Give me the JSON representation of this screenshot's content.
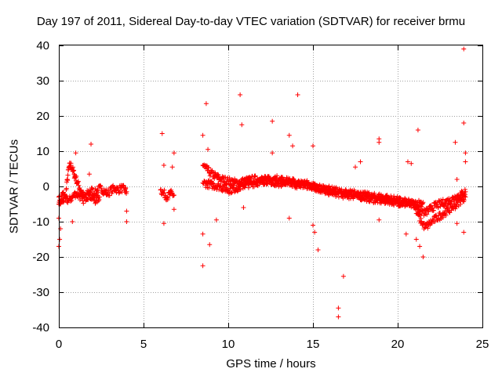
{
  "chart_data": {
    "type": "scatter",
    "title": "Day 197 of 2011, Sidereal Day-to-day VTEC variation (SDTVAR) for receiver brmu",
    "xlabel": "GPS time / hours",
    "ylabel": "SDTVAR / TECUs",
    "xlim": [
      0,
      25
    ],
    "ylim": [
      -40,
      40
    ],
    "xticks": [
      "0",
      "5",
      "10",
      "15",
      "20",
      "25"
    ],
    "yticks": [
      "-40",
      "-30",
      "-20",
      "-10",
      "0",
      "10",
      "20",
      "30",
      "40"
    ],
    "grid": true,
    "marker": "+",
    "marker_color": "#ff0000",
    "series": [
      {
        "name": "SDTVAR",
        "segments": [
          {
            "x": [
              0.0,
              0.1,
              0.2,
              0.4,
              0.5,
              0.6,
              0.7,
              0.8,
              0.9,
              1.0,
              1.1,
              1.3,
              1.5,
              1.7,
              1.9,
              2.1,
              2.3,
              2.5,
              2.7,
              2.9,
              3.1,
              3.3,
              3.5,
              3.7,
              3.9,
              4.0
            ],
            "y": [
              -3.0,
              -5.0,
              -2.0,
              -3.0,
              2.0,
              5.5,
              6.0,
              5.0,
              3.5,
              2.5,
              1.0,
              -1.0,
              -3.0,
              -2.0,
              -1.0,
              -2.0,
              -1.0,
              -0.5,
              -1.5,
              -2.0,
              -1.0,
              -0.5,
              -1.0,
              -0.5,
              -1.0,
              -1.5
            ]
          },
          {
            "x": [
              0.0,
              0.2,
              0.4,
              0.6,
              0.8,
              1.0,
              1.2,
              1.4,
              1.6,
              1.8,
              2.0,
              2.2,
              2.4
            ],
            "y": [
              -5.0,
              -4.0,
              -3.5,
              -4.0,
              -3.0,
              -2.0,
              -2.5,
              -4.0,
              -3.0,
              -2.5,
              -3.5,
              -4.0,
              -3.0
            ]
          },
          {
            "x": [
              6.0,
              6.2,
              6.4,
              6.6,
              6.8
            ],
            "y": [
              -1.0,
              -2.0,
              -3.0,
              -2.0,
              -2.5
            ]
          },
          {
            "x": [
              8.5,
              8.7,
              8.9,
              9.2,
              9.6,
              10.0,
              10.5,
              11.0,
              11.5,
              12.0,
              12.5,
              13.0,
              13.5,
              14.0,
              14.5,
              15.0,
              15.5,
              16.0,
              16.5,
              17.0,
              17.5,
              18.0,
              18.5,
              19.0,
              19.5,
              20.0,
              20.5,
              21.0
            ],
            "y": [
              6.0,
              5.0,
              4.0,
              3.0,
              2.0,
              1.5,
              1.0,
              1.5,
              2.0,
              2.0,
              1.5,
              1.0,
              1.0,
              0.5,
              1.0,
              0.0,
              -1.0,
              -1.5,
              -2.0,
              -2.5,
              -2.5,
              -3.0,
              -3.5,
              -4.0,
              -4.0,
              -4.5,
              -5.0,
              -5.5
            ]
          },
          {
            "x": [
              8.5,
              9.0,
              9.5,
              10.0,
              10.5,
              11.0,
              11.5,
              12.0,
              12.5,
              13.0,
              13.5,
              14.0,
              14.5,
              15.0,
              15.5,
              16.0,
              16.5,
              17.0,
              17.5,
              18.0,
              18.5,
              19.0,
              19.5,
              20.0,
              20.5,
              21.0,
              21.5
            ],
            "y": [
              1.0,
              0.5,
              0.0,
              -1.0,
              -0.5,
              0.5,
              1.0,
              1.5,
              2.0,
              2.0,
              1.5,
              1.0,
              0.5,
              0.0,
              -0.5,
              -1.0,
              -1.5,
              -2.0,
              -2.0,
              -2.5,
              -3.0,
              -3.0,
              -3.5,
              -4.0,
              -4.5,
              -5.0,
              -4.5
            ]
          },
          {
            "x": [
              21.0,
              21.2,
              21.4,
              21.6,
              21.8,
              22.0,
              22.3,
              22.6,
              22.9,
              23.2,
              23.5,
              23.8,
              24.0
            ],
            "y": [
              -6.0,
              -8.0,
              -10.0,
              -11.5,
              -11.0,
              -10.0,
              -9.0,
              -8.0,
              -7.0,
              -6.0,
              -5.0,
              -3.5,
              -3.0
            ]
          },
          {
            "x": [
              21.0,
              21.3,
              21.6,
              21.9,
              22.2,
              22.5,
              22.8,
              23.1,
              23.4,
              23.7,
              24.0
            ],
            "y": [
              -5.0,
              -6.5,
              -7.5,
              -6.5,
              -5.5,
              -5.0,
              -4.5,
              -4.0,
              -3.0,
              -2.5,
              -1.5
            ]
          }
        ],
        "outliers": [
          {
            "x": 0.0,
            "y": -17.0
          },
          {
            "x": 0.05,
            "y": -15.0
          },
          {
            "x": 0.1,
            "y": -12.0
          },
          {
            "x": 0.0,
            "y": -9.0
          },
          {
            "x": 1.0,
            "y": 9.5
          },
          {
            "x": 1.9,
            "y": 12.0
          },
          {
            "x": 1.8,
            "y": 3.5
          },
          {
            "x": 0.8,
            "y": -10.0
          },
          {
            "x": 4.0,
            "y": -7.0
          },
          {
            "x": 4.0,
            "y": -10.0
          },
          {
            "x": 6.1,
            "y": 15.0
          },
          {
            "x": 6.2,
            "y": 6.0
          },
          {
            "x": 6.8,
            "y": 9.5
          },
          {
            "x": 6.7,
            "y": 5.5
          },
          {
            "x": 6.2,
            "y": -10.5
          },
          {
            "x": 6.8,
            "y": -6.5
          },
          {
            "x": 8.5,
            "y": 14.5
          },
          {
            "x": 8.7,
            "y": 23.5
          },
          {
            "x": 8.8,
            "y": 10.5
          },
          {
            "x": 8.5,
            "y": -13.5
          },
          {
            "x": 8.5,
            "y": -22.5
          },
          {
            "x": 8.9,
            "y": -16.5
          },
          {
            "x": 9.3,
            "y": -9.5
          },
          {
            "x": 10.7,
            "y": 26.0
          },
          {
            "x": 10.8,
            "y": 17.5
          },
          {
            "x": 10.9,
            "y": -6.0
          },
          {
            "x": 12.6,
            "y": 18.5
          },
          {
            "x": 12.6,
            "y": 9.5
          },
          {
            "x": 13.6,
            "y": 14.5
          },
          {
            "x": 13.8,
            "y": 11.5
          },
          {
            "x": 14.1,
            "y": 26.0
          },
          {
            "x": 13.6,
            "y": -9.0
          },
          {
            "x": 15.0,
            "y": 11.5
          },
          {
            "x": 15.1,
            "y": -13.0
          },
          {
            "x": 15.3,
            "y": -18.0
          },
          {
            "x": 15.0,
            "y": -11.0
          },
          {
            "x": 16.5,
            "y": -34.5
          },
          {
            "x": 16.5,
            "y": -37.0
          },
          {
            "x": 16.8,
            "y": -25.5
          },
          {
            "x": 17.5,
            "y": 5.5
          },
          {
            "x": 17.8,
            "y": 7.0
          },
          {
            "x": 18.9,
            "y": 13.5
          },
          {
            "x": 18.9,
            "y": 12.5
          },
          {
            "x": 18.9,
            "y": -9.5
          },
          {
            "x": 20.6,
            "y": 7.0
          },
          {
            "x": 20.8,
            "y": 6.5
          },
          {
            "x": 21.2,
            "y": 16.0
          },
          {
            "x": 20.5,
            "y": -13.5
          },
          {
            "x": 21.1,
            "y": -15.0
          },
          {
            "x": 21.5,
            "y": -20.0
          },
          {
            "x": 21.3,
            "y": -17.0
          },
          {
            "x": 23.4,
            "y": 12.5
          },
          {
            "x": 23.5,
            "y": 2.0
          },
          {
            "x": 23.5,
            "y": -10.5
          },
          {
            "x": 23.9,
            "y": 39.0
          },
          {
            "x": 23.9,
            "y": 18.0
          },
          {
            "x": 24.0,
            "y": 9.5
          },
          {
            "x": 24.0,
            "y": 7.0
          },
          {
            "x": 23.9,
            "y": -13.0
          }
        ]
      }
    ]
  }
}
